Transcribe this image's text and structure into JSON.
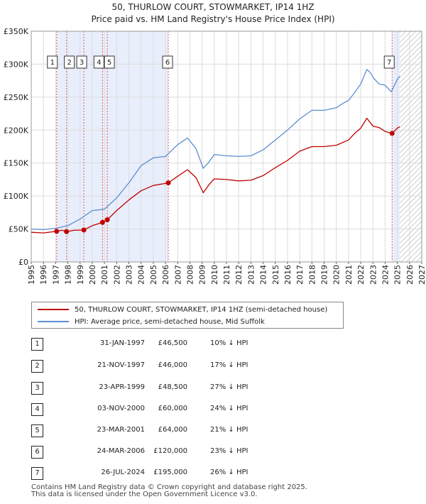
{
  "title": {
    "line1": "50, THURLOW COURT, STOWMARKET, IP14 1HZ",
    "line2": "Price paid vs. HM Land Registry's House Price Index (HPI)"
  },
  "colors": {
    "price_line": "#c00000",
    "hpi_line": "#5b8fd0",
    "shade": "#e8eefb",
    "vline": "#e06060",
    "grid": "#dcdcdc"
  },
  "legend": {
    "price": "50, THURLOW COURT, STOWMARKET, IP14 1HZ (semi-detached house)",
    "hpi": "HPI: Average price, semi-detached house, Mid Suffolk"
  },
  "transactions": [
    {
      "num": "1",
      "date": "31-JAN-1997",
      "price": "£46,500",
      "hpi": "10% ↓ HPI"
    },
    {
      "num": "2",
      "date": "21-NOV-1997",
      "price": "£46,000",
      "hpi": "17% ↓ HPI"
    },
    {
      "num": "3",
      "date": "23-APR-1999",
      "price": "£48,500",
      "hpi": "27% ↓ HPI"
    },
    {
      "num": "4",
      "date": "03-NOV-2000",
      "price": "£60,000",
      "hpi": "24% ↓ HPI"
    },
    {
      "num": "5",
      "date": "23-MAR-2001",
      "price": "£64,000",
      "hpi": "21% ↓ HPI"
    },
    {
      "num": "6",
      "date": "24-MAR-2006",
      "price": "£120,000",
      "hpi": "23% ↓ HPI"
    },
    {
      "num": "7",
      "date": "26-JUL-2024",
      "price": "£195,000",
      "hpi": "26% ↓ HPI"
    }
  ],
  "footer": {
    "line1": "Contains HM Land Registry data © Crown copyright and database right 2025.",
    "line2": "This data is licensed under the Open Government Licence v3.0."
  },
  "chart_data": {
    "type": "line",
    "title": "50, THURLOW COURT, STOWMARKET, IP14 1HZ — Price paid vs. HM Land Registry's House Price Index (HPI)",
    "xlabel": "",
    "ylabel": "",
    "xlim": [
      1995,
      2027
    ],
    "ylim": [
      0,
      350000
    ],
    "y_ticks": [
      0,
      50000,
      100000,
      150000,
      200000,
      250000,
      300000,
      350000
    ],
    "y_tick_labels": [
      "£0",
      "£50K",
      "£100K",
      "£150K",
      "£200K",
      "£250K",
      "£300K",
      "£350K"
    ],
    "x_ticks": [
      1995,
      1996,
      1997,
      1998,
      1999,
      2000,
      2001,
      2002,
      2003,
      2004,
      2005,
      2006,
      2007,
      2008,
      2009,
      2010,
      2011,
      2012,
      2013,
      2014,
      2015,
      2016,
      2017,
      2018,
      2019,
      2020,
      2021,
      2022,
      2023,
      2024,
      2025,
      2026,
      2027
    ],
    "x_tick_labels": [
      "1995",
      "1996",
      "1997",
      "1998",
      "1999",
      "2000",
      "2001",
      "2002",
      "2003",
      "2004",
      "2005",
      "2006",
      "2007",
      "2008",
      "2009",
      "2010",
      "2011",
      "2012",
      "2013",
      "2014",
      "2015",
      "2016",
      "2017",
      "2018",
      "2019",
      "2020",
      "2021",
      "2022",
      "2023",
      "2024",
      "2025",
      "2026",
      "2027"
    ],
    "shaded_ranges": [
      [
        1997.08,
        2006.23
      ],
      [
        2024.57,
        2025.2
      ]
    ],
    "hatched_range": [
      2025.2,
      2027
    ],
    "legend_position": "below",
    "sales": [
      {
        "label": "1",
        "x": 1997.08,
        "price": 46500
      },
      {
        "label": "2",
        "x": 1997.89,
        "price": 46000
      },
      {
        "label": "3",
        "x": 1999.31,
        "price": 48500
      },
      {
        "label": "4",
        "x": 2000.84,
        "price": 60000
      },
      {
        "label": "5",
        "x": 2001.23,
        "price": 64000
      },
      {
        "label": "6",
        "x": 2006.23,
        "price": 120000
      },
      {
        "label": "7",
        "x": 2024.57,
        "price": 195000
      }
    ],
    "series": [
      {
        "name": "HPI: Average price, semi-detached house, Mid Suffolk",
        "x": [
          1995,
          1996,
          1997,
          1997.5,
          1998,
          1999,
          2000,
          2001,
          2002,
          2003,
          2004,
          2005,
          2006,
          2007,
          2007.8,
          2008.5,
          2009.1,
          2009.5,
          2010,
          2011,
          2012,
          2013,
          2014,
          2015,
          2016,
          2017,
          2018,
          2019,
          2020,
          2020.5,
          2021,
          2021.5,
          2022,
          2022.5,
          2022.8,
          2023,
          2023.5,
          2024,
          2024.5,
          2025,
          2025.2
        ],
        "y": [
          50000,
          49000,
          51000,
          53000,
          55000,
          65000,
          78000,
          80000,
          97000,
          120000,
          146000,
          158000,
          160000,
          178000,
          188000,
          172000,
          142000,
          150000,
          163000,
          161000,
          160000,
          161000,
          170000,
          185000,
          200000,
          217000,
          230000,
          230000,
          234000,
          240000,
          245000,
          257000,
          270000,
          292000,
          287000,
          280000,
          270000,
          268000,
          258000,
          277000,
          282000
        ]
      },
      {
        "name": "50, THURLOW COURT, STOWMARKET, IP14 1HZ (semi-detached house)",
        "x": [
          1995,
          1996,
          1997.08,
          1997.5,
          1997.89,
          1998.5,
          1999.31,
          2000,
          2000.84,
          2001.23,
          2002,
          2003,
          2004,
          2005,
          2006.23,
          2007,
          2007.8,
          2008.5,
          2009.1,
          2009.6,
          2010,
          2011,
          2012,
          2013,
          2014,
          2015,
          2016,
          2017,
          2018,
          2019,
          2020,
          2021,
          2021.5,
          2022,
          2022.5,
          2023,
          2023.5,
          2024,
          2024.57,
          2025,
          2025.2
        ],
        "y": [
          45000,
          44000,
          46500,
          48000,
          46000,
          48000,
          48500,
          55000,
          60000,
          64000,
          78000,
          94000,
          108000,
          116000,
          120000,
          130000,
          140000,
          128000,
          105000,
          118000,
          126000,
          125000,
          123000,
          124000,
          131000,
          143000,
          154000,
          168000,
          175000,
          175000,
          177000,
          185000,
          195000,
          203000,
          218000,
          206000,
          204000,
          198000,
          195000,
          203000,
          205000
        ]
      }
    ]
  }
}
